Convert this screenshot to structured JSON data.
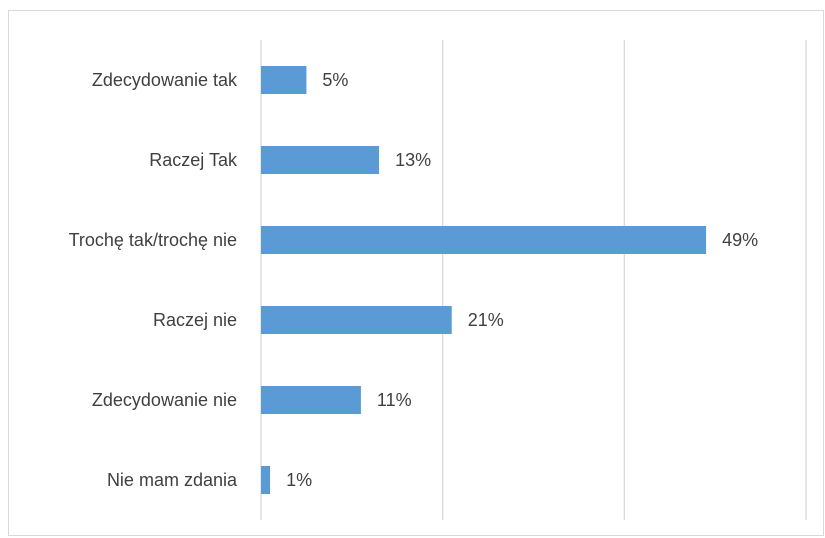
{
  "chart_data": {
    "type": "bar",
    "orientation": "horizontal",
    "categories": [
      "Zdecydowanie tak",
      "Raczej Tak",
      "Trochę tak/trochę nie",
      "Raczej nie",
      "Zdecydowanie nie",
      "Nie mam zdania"
    ],
    "values": [
      5,
      13,
      49,
      21,
      11,
      1
    ],
    "value_labels": [
      "5%",
      "13%",
      "49%",
      "21%",
      "11%",
      "1%"
    ],
    "unit": "%",
    "xlim": [
      0,
      60
    ],
    "grid": true,
    "bar_color": "#5b9bd5",
    "title": "",
    "xlabel": "",
    "ylabel": ""
  }
}
